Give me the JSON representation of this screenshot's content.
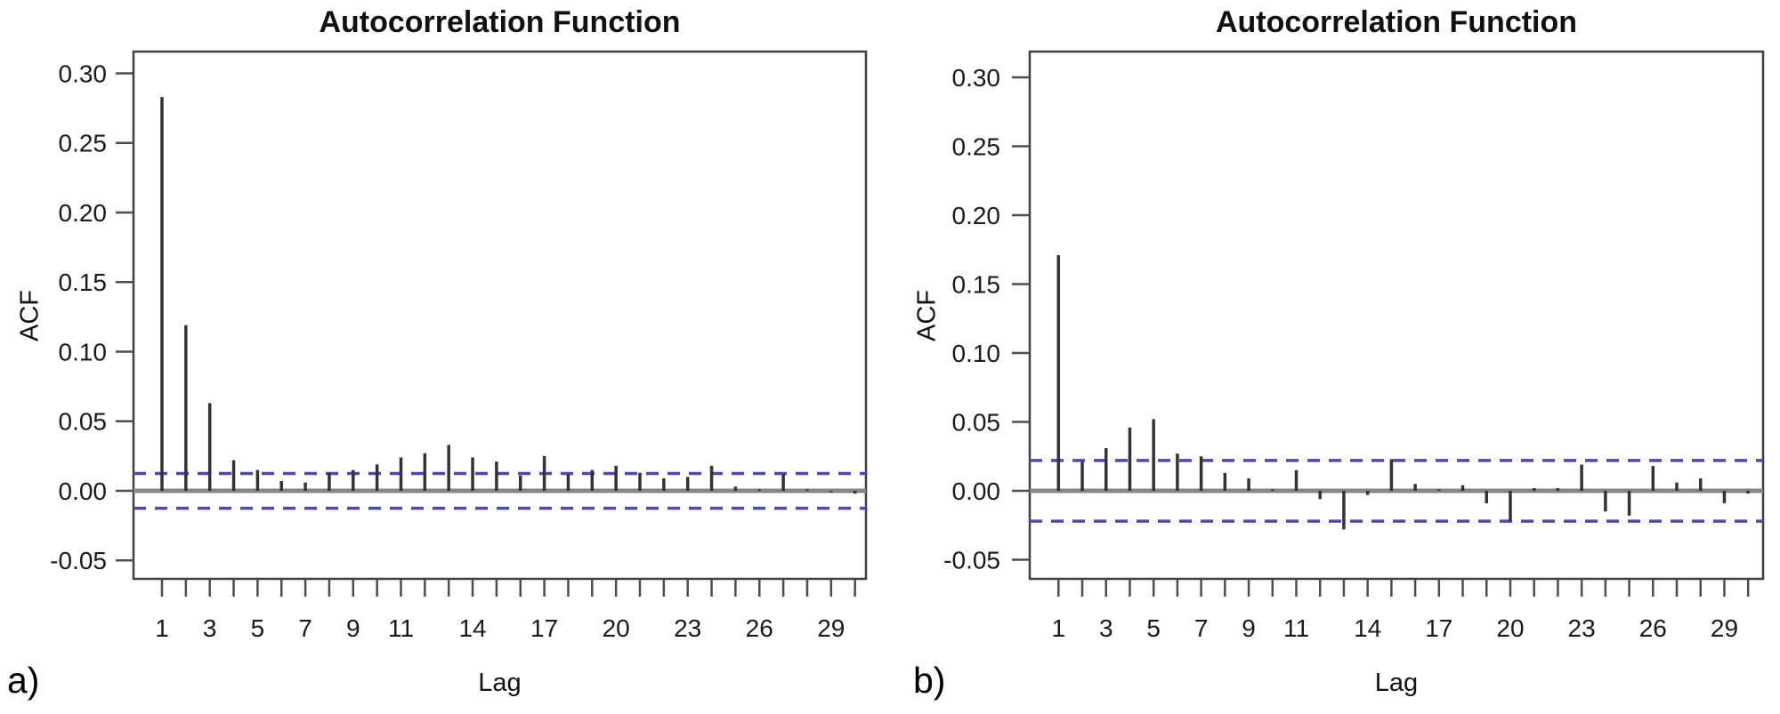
{
  "figure": {
    "panels": [
      {
        "panel_label": "a)",
        "title": "Autocorrelation Function",
        "ylabel": "ACF",
        "xlabel": "Lag"
      },
      {
        "panel_label": "b)",
        "title": "Autocorrelation Function",
        "ylabel": "ACF",
        "xlabel": "Lag"
      }
    ]
  },
  "chart_data": [
    {
      "type": "bar",
      "subtype": "acf-stem-plot",
      "panel": "a",
      "title": "Autocorrelation Function",
      "xlabel": "Lag",
      "ylabel": "ACF",
      "x": [
        1,
        2,
        3,
        4,
        5,
        6,
        7,
        8,
        9,
        10,
        11,
        12,
        13,
        14,
        15,
        16,
        17,
        18,
        19,
        20,
        21,
        22,
        23,
        24,
        25,
        26,
        27,
        28,
        29,
        30
      ],
      "values": [
        0.283,
        0.119,
        0.063,
        0.022,
        0.015,
        0.007,
        0.006,
        0.013,
        0.015,
        0.019,
        0.024,
        0.027,
        0.033,
        0.024,
        0.021,
        0.011,
        0.025,
        0.012,
        0.015,
        0.018,
        0.013,
        0.009,
        0.01,
        0.018,
        0.003,
        0.001,
        0.012,
        0.001,
        -0.001,
        -0.002
      ],
      "confidence_bounds": [
        -0.0125,
        0.0125
      ],
      "ylim": [
        -0.063,
        0.316
      ],
      "ytick_labels": [
        "0.30",
        "0.25",
        "0.20",
        "0.15",
        "0.10",
        "0.05",
        "0.00",
        "-0.05"
      ],
      "ytick_values": [
        0.3,
        0.25,
        0.2,
        0.15,
        0.1,
        0.05,
        0.0,
        -0.05
      ],
      "xtick_lags_labeled": [
        1,
        3,
        5,
        7,
        9,
        11,
        14,
        17,
        20,
        23,
        26,
        29
      ],
      "xtick_labels": [
        "1",
        "3",
        "5",
        "7",
        "9",
        "11",
        "14",
        "17",
        "20",
        "23",
        "26",
        "29"
      ],
      "grid": "off",
      "legend": "none",
      "colors": {
        "bar": "#333333",
        "zero_line": "#858585",
        "conf_line": "#4a4ab2",
        "box": "#3f3f3f",
        "tick": "#4d4d4d",
        "text": "#1a1a1a"
      }
    },
    {
      "type": "bar",
      "subtype": "acf-stem-plot",
      "panel": "b",
      "title": "Autocorrelation Function",
      "xlabel": "Lag",
      "ylabel": "ACF",
      "x": [
        1,
        2,
        3,
        4,
        5,
        6,
        7,
        8,
        9,
        10,
        11,
        12,
        13,
        14,
        15,
        16,
        17,
        18,
        19,
        20,
        21,
        22,
        23,
        24,
        25,
        26,
        27,
        28,
        29,
        30
      ],
      "values": [
        0.171,
        0.021,
        0.031,
        0.046,
        0.052,
        0.027,
        0.025,
        0.013,
        0.009,
        0.001,
        0.015,
        -0.006,
        -0.028,
        -0.003,
        0.023,
        0.005,
        0.001,
        0.004,
        -0.009,
        -0.022,
        0.002,
        0.002,
        0.019,
        -0.015,
        -0.018,
        0.018,
        0.006,
        0.009,
        -0.009,
        -0.002
      ],
      "confidence_bounds": [
        -0.022,
        0.022
      ],
      "ylim": [
        -0.063,
        0.316
      ],
      "ytick_labels": [
        "0.30",
        "0.25",
        "0.20",
        "0.15",
        "0.10",
        "0.05",
        "0.00",
        "-0.05"
      ],
      "ytick_values": [
        0.3,
        0.25,
        0.2,
        0.15,
        0.1,
        0.05,
        0.0,
        -0.05
      ],
      "xtick_lags_labeled": [
        1,
        3,
        5,
        7,
        9,
        11,
        14,
        17,
        20,
        23,
        26,
        29
      ],
      "xtick_labels": [
        "1",
        "3",
        "5",
        "7",
        "9",
        "11",
        "14",
        "17",
        "20",
        "23",
        "26",
        "29"
      ],
      "grid": "off",
      "legend": "none",
      "colors": {
        "bar": "#333333",
        "zero_line": "#858585",
        "conf_line": "#4a4ab2",
        "box": "#3f3f3f",
        "tick": "#4d4d4d",
        "text": "#1a1a1a"
      }
    }
  ]
}
